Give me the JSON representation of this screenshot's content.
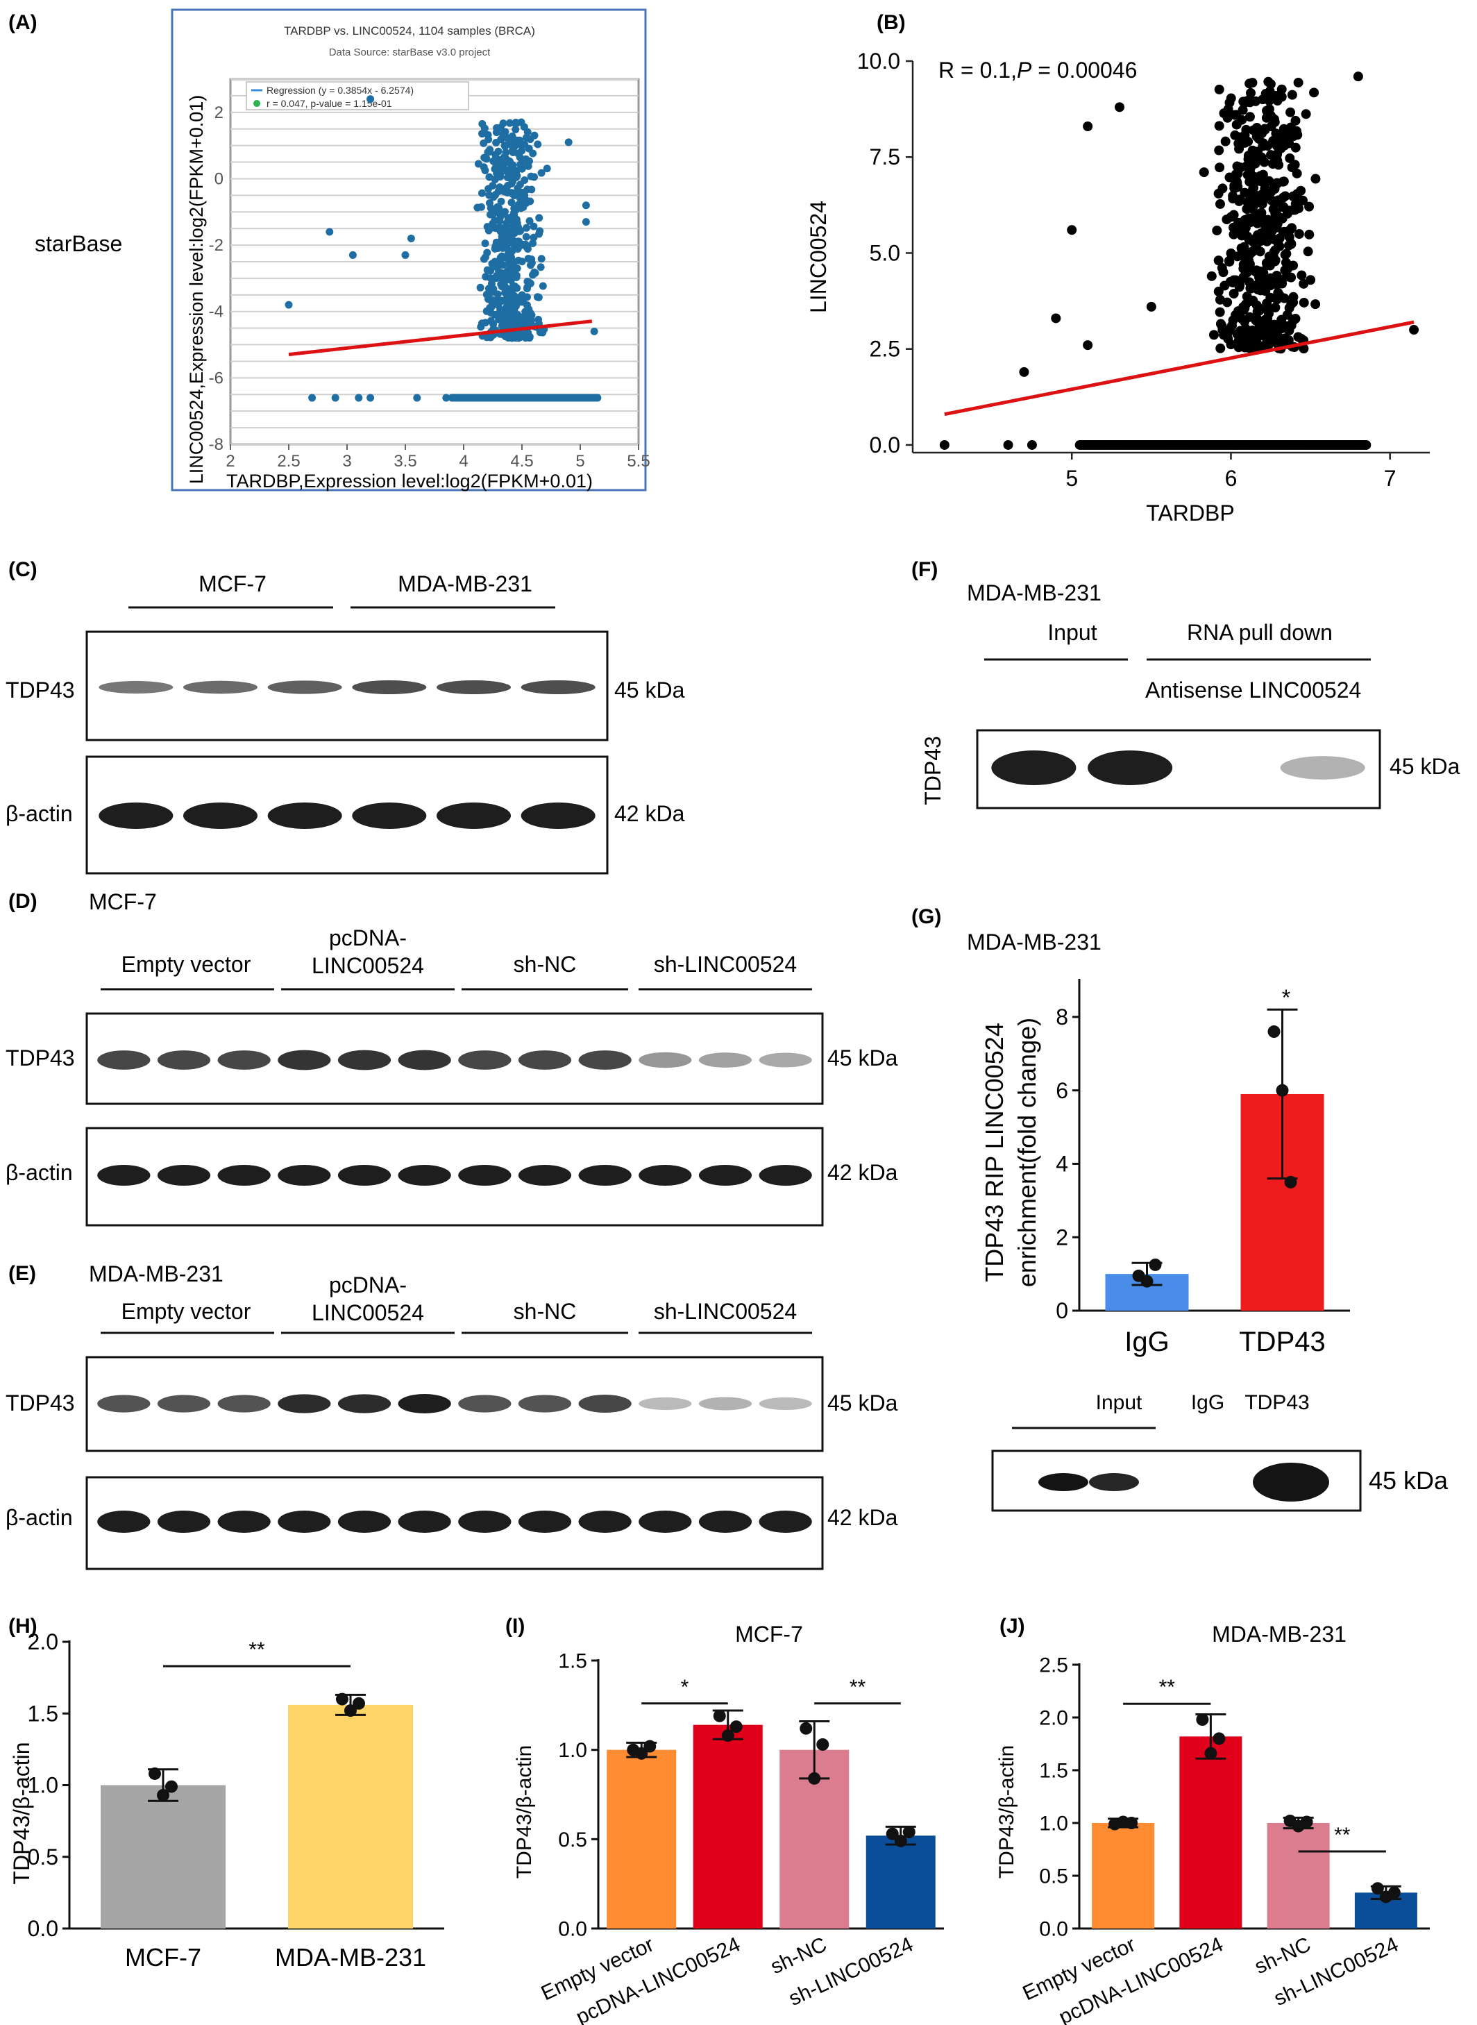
{
  "panels": {
    "A": {
      "label": "(A)",
      "side_label": "starBase",
      "title": "TARDBP vs. LINC00524, 1104 samples (BRCA)",
      "subtitle": "Data Source: starBase v3.0 project",
      "legend_regression": "Regression (y = 0.3854x - 6.2574)",
      "legend_r": "r = 0.047, p-value = 1.15e-01",
      "xlabel": "TARDBP,Expression level:log2(FPKM+0.01)",
      "ylabel": "LINC00524,Expression level:log2(FPKM+0.01)"
    },
    "B": {
      "label": "(B)",
      "annotation": "R = 0.1,",
      "annotation_p": "P",
      "annotation_pval": " = 0.00046",
      "xlabel": "TARDBP",
      "ylabel": "LINC00524"
    },
    "C": {
      "label": "(C)",
      "groups": [
        "MCF-7",
        "MDA-MB-231"
      ],
      "rows": [
        {
          "protein": "TDP43",
          "size": "45 kDa"
        },
        {
          "protein": "β-actin",
          "size": "42 kDa"
        }
      ]
    },
    "D": {
      "label": "(D)",
      "cell_line": "MCF-7",
      "groups": [
        "Empty vector",
        "pcDNA-",
        "LINC00524",
        "sh-NC",
        "sh-LINC00524"
      ],
      "rows": [
        {
          "protein": "TDP43",
          "size": "45 kDa"
        },
        {
          "protein": "β-actin",
          "size": "42 kDa"
        }
      ]
    },
    "E": {
      "label": "(E)",
      "cell_line": "MDA-MB-231",
      "groups": [
        "Empty vector",
        "pcDNA-",
        "LINC00524",
        "sh-NC",
        "sh-LINC00524"
      ],
      "rows": [
        {
          "protein": "TDP43",
          "size": "45 kDa"
        },
        {
          "protein": "β-actin",
          "size": "42 kDa"
        }
      ]
    },
    "F": {
      "label": "(F)",
      "cell_line": "MDA-MB-231",
      "groups": [
        "Input",
        "RNA pull down"
      ],
      "subgroup": "Antisense LINC00524",
      "protein": "TDP43",
      "size": "45 kDa"
    },
    "G": {
      "label": "(G)",
      "cell_line": "MDA-MB-231",
      "ylabel1": "TDP43 RIP LINC00524",
      "ylabel2": "enrichment(fold change)",
      "sig": "*",
      "blot_groups": [
        "Input",
        "IgG",
        "TDP43"
      ],
      "blot_size": "45 kDa"
    },
    "H": {
      "label": "(H)",
      "ylabel": "TDP43/β-actin",
      "sig": "**"
    },
    "I": {
      "label": "(I)",
      "title": "MCF-7",
      "ylabel": "TDP43/β-actin",
      "sig": [
        "*",
        "**"
      ]
    },
    "J": {
      "label": "(J)",
      "title": "MDA-MB-231",
      "ylabel": "TDP43/β-actin",
      "sig": [
        "**",
        "**"
      ]
    }
  },
  "chart_data": [
    {
      "panel": "A",
      "type": "scatter",
      "title": "TARDBP vs. LINC00524, 1104 samples (BRCA)",
      "xlabel": "TARDBP,Expression level:log2(FPKM+0.01)",
      "ylabel": "LINC00524,Expression level:log2(FPKM+0.01)",
      "xlim": [
        2,
        5.5
      ],
      "ylim": [
        -8,
        3
      ],
      "xticks": [
        "2",
        "2.5",
        "3",
        "3.5",
        "4",
        "4.5",
        "5",
        "5.5"
      ],
      "yticks": [
        "-8",
        "-6",
        "-4",
        "-2",
        "0",
        "2"
      ],
      "regression": {
        "slope": 0.3854,
        "intercept": -6.2574,
        "x_range": [
          2.5,
          5.1
        ]
      },
      "outliers": [
        [
          2.5,
          -3.8
        ],
        [
          2.85,
          -1.6
        ],
        [
          3.05,
          -2.3
        ],
        [
          3.2,
          2.4
        ],
        [
          3.5,
          -2.3
        ],
        [
          3.55,
          -1.8
        ],
        [
          3.2,
          -6.6
        ],
        [
          2.7,
          -6.6
        ],
        [
          2.9,
          -6.6
        ],
        [
          3.1,
          -6.6
        ],
        [
          3.6,
          -6.6
        ],
        [
          3.85,
          -6.6
        ],
        [
          4.9,
          1.1
        ],
        [
          5.05,
          -1.3
        ],
        [
          5.05,
          -0.8
        ],
        [
          5.12,
          -4.6
        ]
      ],
      "cloud": {
        "x_center": 4.4,
        "x_spread": 0.25,
        "y_min": -4.8,
        "y_max": 1.7,
        "n": 500
      },
      "floor": {
        "y": -6.6,
        "x_range": [
          3.9,
          5.15
        ]
      },
      "grid": true,
      "legend": "top-left"
    },
    {
      "panel": "B",
      "type": "scatter",
      "xlabel": "TARDBP",
      "ylabel": "LINC00524",
      "xlim": [
        4.0,
        7.25
      ],
      "ylim": [
        -0.2,
        10
      ],
      "xticks": [
        "5",
        "6",
        "7"
      ],
      "yticks": [
        "0.0",
        "2.5",
        "5.0",
        "7.5",
        "10.0"
      ],
      "regression": {
        "x_range": [
          4.2,
          7.15
        ],
        "y_range": [
          0.8,
          3.2
        ]
      },
      "outliers": [
        [
          4.2,
          0
        ],
        [
          4.6,
          0
        ],
        [
          4.75,
          0
        ],
        [
          4.7,
          1.9
        ],
        [
          4.9,
          3.3
        ],
        [
          5.1,
          8.3
        ],
        [
          5.3,
          8.8
        ],
        [
          5.1,
          2.6
        ],
        [
          5.0,
          5.6
        ],
        [
          6.8,
          9.6
        ],
        [
          7.15,
          3.0
        ],
        [
          5.5,
          3.6
        ]
      ],
      "cloud": {
        "x_center": 6.2,
        "x_spread": 0.3,
        "y_min": 2.5,
        "y_max": 9.5,
        "n": 500
      },
      "floor": {
        "y": 0,
        "x_range": [
          5.05,
          6.85
        ]
      },
      "grid": false
    },
    {
      "panel": "G",
      "type": "bar",
      "ylabel": "TDP43 RIP LINC00524 enrichment(fold change)",
      "categories": [
        "IgG",
        "TDP43"
      ],
      "values": [
        1.0,
        5.9
      ],
      "errors": [
        0.3,
        2.3
      ],
      "points": [
        [
          0.95,
          0.8,
          1.25
        ],
        [
          7.6,
          6.0,
          3.5
        ]
      ],
      "colors": [
        "#4a8de8",
        "#ee1c1c"
      ],
      "ylim": [
        0,
        9
      ],
      "yticks": [
        "0",
        "2",
        "4",
        "6",
        "8"
      ]
    },
    {
      "panel": "H",
      "type": "bar",
      "ylabel": "TDP43/β-actin",
      "categories": [
        "MCF-7",
        "MDA-MB-231"
      ],
      "values": [
        1.0,
        1.56
      ],
      "errors": [
        0.11,
        0.07
      ],
      "points": [
        [
          1.08,
          0.93,
          0.99
        ],
        [
          1.6,
          1.52,
          1.57
        ]
      ],
      "colors": [
        "#a6a6a6",
        "#fdd466"
      ],
      "ylim": [
        0,
        2.0
      ],
      "yticks": [
        "0.0",
        "0.5",
        "1.0",
        "1.5",
        "2.0"
      ]
    },
    {
      "panel": "I",
      "type": "bar",
      "title": "MCF-7",
      "ylabel": "TDP43/β-actin",
      "categories": [
        "Empty vector",
        "pcDNA-LINC00524",
        "sh-NC",
        "sh-LINC00524"
      ],
      "values": [
        1.0,
        1.14,
        1.0,
        0.52
      ],
      "errors": [
        0.04,
        0.08,
        0.16,
        0.05
      ],
      "points": [
        [
          1.0,
          0.98,
          1.02
        ],
        [
          1.19,
          1.08,
          1.13
        ],
        [
          1.12,
          0.84,
          1.03
        ],
        [
          0.53,
          0.49,
          0.54
        ]
      ],
      "colors": [
        "#ff8c32",
        "#e0001a",
        "#db7d8e",
        "#0a4e9a"
      ],
      "ylim": [
        0,
        1.5
      ],
      "yticks": [
        "0.0",
        "0.5",
        "1.0",
        "1.5"
      ]
    },
    {
      "panel": "J",
      "type": "bar",
      "title": "MDA-MB-231",
      "ylabel": "TDP43/β-actin",
      "categories": [
        "Empty vector",
        "pcDNA-LINC00524",
        "sh-NC",
        "sh-LINC00524"
      ],
      "values": [
        1.0,
        1.82,
        1.0,
        0.34
      ],
      "errors": [
        0.04,
        0.21,
        0.05,
        0.06
      ],
      "points": [
        [
          0.99,
          1.01,
          1.0
        ],
        [
          1.98,
          1.66,
          1.8
        ],
        [
          1.02,
          0.97,
          1.01
        ],
        [
          0.38,
          0.3,
          0.34
        ]
      ],
      "colors": [
        "#ff8c32",
        "#e0001a",
        "#db7d8e",
        "#0a4e9a"
      ],
      "ylim": [
        0,
        2.5
      ],
      "yticks": [
        "0.0",
        "0.5",
        "1.0",
        "1.5",
        "2.0",
        "2.5"
      ]
    }
  ],
  "blots": {
    "C": [
      [
        0.65,
        0.7,
        0.75,
        0.82,
        0.82,
        0.82
      ],
      [
        1,
        1,
        1,
        1,
        1,
        1
      ]
    ],
    "D": [
      [
        0.85,
        0.85,
        0.85,
        0.92,
        0.92,
        0.92,
        0.85,
        0.85,
        0.85,
        0.5,
        0.45,
        0.4
      ],
      [
        1,
        1,
        1,
        1,
        1,
        1,
        1,
        1,
        1,
        1,
        1,
        1
      ]
    ],
    "E": [
      [
        0.8,
        0.8,
        0.8,
        0.95,
        0.95,
        1.0,
        0.8,
        0.8,
        0.85,
        0.3,
        0.35,
        0.3
      ],
      [
        1,
        1,
        1,
        1,
        1,
        1,
        1,
        1,
        1,
        1,
        1,
        1
      ]
    ],
    "F": [
      1,
      1,
      0,
      0.35
    ],
    "G": [
      1,
      0.85,
      0,
      1.2
    ]
  }
}
